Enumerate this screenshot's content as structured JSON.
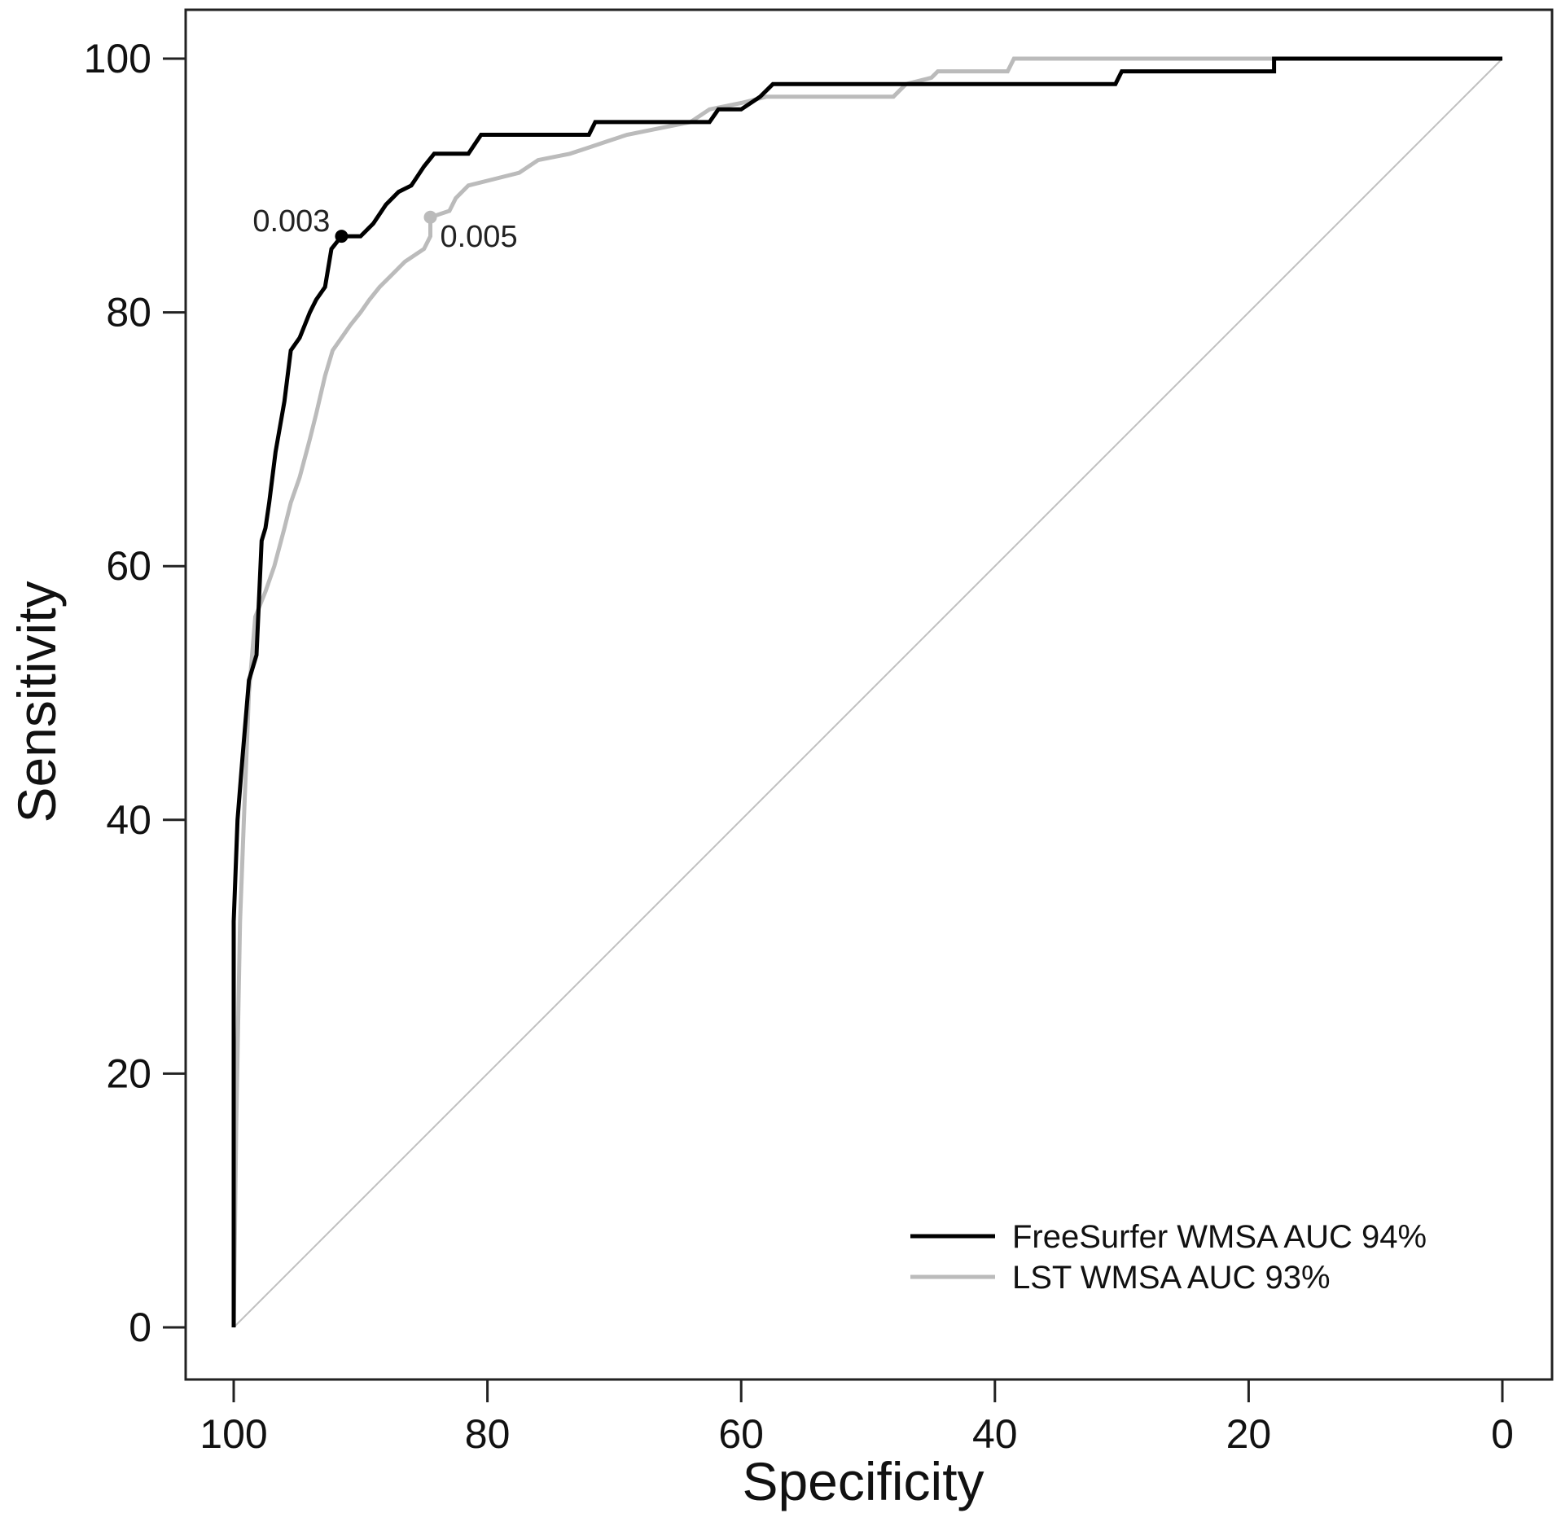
{
  "chart_data": {
    "type": "line",
    "title": "",
    "xlabel": "Specificity",
    "ylabel": "Sensitivity",
    "x_reversed": true,
    "xlim": [
      100,
      0
    ],
    "ylim": [
      0,
      100
    ],
    "xticks": [
      100,
      80,
      60,
      40,
      20,
      0
    ],
    "yticks": [
      0,
      20,
      40,
      60,
      80,
      100
    ],
    "grid": false,
    "legend_position": "bottom-right",
    "reference_line": {
      "from": [
        100,
        0
      ],
      "to": [
        0,
        100
      ],
      "color": "#c0c0c0"
    },
    "series": [
      {
        "name": "FreeSurfer WMSA AUC 94%",
        "color": "#000000",
        "points": [
          [
            100,
            0
          ],
          [
            100,
            32
          ],
          [
            99.7,
            40
          ],
          [
            99.3,
            45
          ],
          [
            98.8,
            51
          ],
          [
            98.2,
            53
          ],
          [
            97.8,
            62
          ],
          [
            97.5,
            63
          ],
          [
            97.2,
            65
          ],
          [
            96.7,
            69
          ],
          [
            96.0,
            73
          ],
          [
            95.5,
            77
          ],
          [
            94.8,
            78
          ],
          [
            94.0,
            80
          ],
          [
            93.5,
            81
          ],
          [
            92.8,
            82
          ],
          [
            92.3,
            85
          ],
          [
            91.5,
            86
          ],
          [
            90.0,
            86
          ],
          [
            89.0,
            87
          ],
          [
            88.0,
            88.5
          ],
          [
            87.0,
            89.5
          ],
          [
            86.0,
            90
          ],
          [
            85.0,
            91.5
          ],
          [
            84.2,
            92.5
          ],
          [
            81.5,
            92.5
          ],
          [
            80.5,
            94
          ],
          [
            72.0,
            94
          ],
          [
            71.5,
            95
          ],
          [
            66.5,
            95
          ],
          [
            62.5,
            95
          ],
          [
            61.8,
            96
          ],
          [
            60.0,
            96
          ],
          [
            58.5,
            97
          ],
          [
            57.5,
            98
          ],
          [
            42.0,
            98
          ],
          [
            30.5,
            98
          ],
          [
            30.0,
            99
          ],
          [
            18.0,
            99
          ],
          [
            18.0,
            100
          ],
          [
            0,
            100
          ]
        ]
      },
      {
        "name": "LST WMSA AUC 93%",
        "color": "#bbbbbb",
        "points": [
          [
            100,
            0
          ],
          [
            99.8,
            16
          ],
          [
            99.5,
            32
          ],
          [
            99.2,
            40
          ],
          [
            98.8,
            50
          ],
          [
            98.3,
            56
          ],
          [
            97.5,
            58
          ],
          [
            96.8,
            60
          ],
          [
            96.0,
            63
          ],
          [
            95.5,
            65
          ],
          [
            94.8,
            67
          ],
          [
            94.0,
            70
          ],
          [
            93.5,
            72
          ],
          [
            92.8,
            75
          ],
          [
            92.2,
            77
          ],
          [
            91.5,
            78
          ],
          [
            90.8,
            79
          ],
          [
            90.0,
            80
          ],
          [
            89.3,
            81
          ],
          [
            88.5,
            82
          ],
          [
            87.5,
            83
          ],
          [
            86.5,
            84
          ],
          [
            85.0,
            85
          ],
          [
            84.5,
            86
          ],
          [
            84.5,
            87.5
          ],
          [
            83.0,
            88
          ],
          [
            82.5,
            89
          ],
          [
            81.5,
            90
          ],
          [
            79.5,
            90.5
          ],
          [
            77.5,
            91
          ],
          [
            76.0,
            92
          ],
          [
            73.5,
            92.5
          ],
          [
            72.0,
            93
          ],
          [
            70.5,
            93.5
          ],
          [
            69.0,
            94
          ],
          [
            66.5,
            94.5
          ],
          [
            64.0,
            95
          ],
          [
            62.5,
            96
          ],
          [
            60.0,
            96.5
          ],
          [
            58.0,
            97
          ],
          [
            48.0,
            97
          ],
          [
            47.0,
            98
          ],
          [
            45.0,
            98.5
          ],
          [
            44.5,
            99
          ],
          [
            39.0,
            99
          ],
          [
            38.5,
            100
          ],
          [
            0,
            100
          ]
        ]
      }
    ],
    "annotations": [
      {
        "text": "0.003",
        "x": 91.5,
        "y": 86,
        "series": 0
      },
      {
        "text": "0.005",
        "x": 84.5,
        "y": 87.5,
        "series": 1
      }
    ]
  }
}
